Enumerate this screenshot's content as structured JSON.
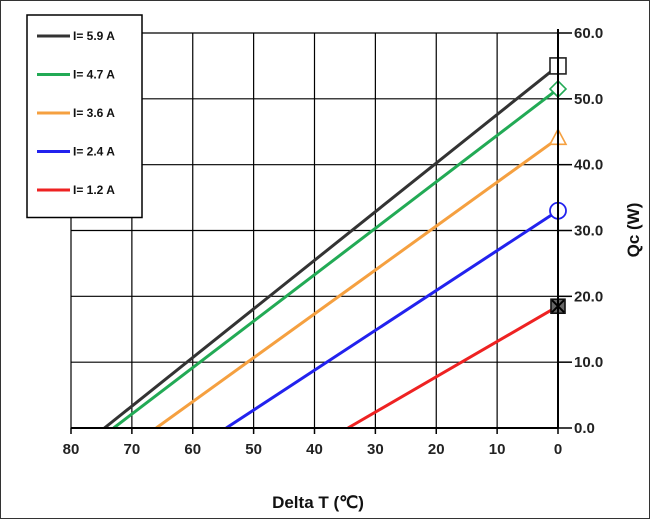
{
  "chart_data": {
    "type": "line",
    "xlabel": "Delta T (℃)",
    "ylabel": "Qc (W)",
    "xlim": [
      80,
      0
    ],
    "ylim": [
      0,
      60
    ],
    "x_ticks": [
      "80",
      "70",
      "60",
      "50",
      "40",
      "30",
      "20",
      "10",
      "0"
    ],
    "y_ticks": [
      "0.0",
      "10.0",
      "20.0",
      "30.0",
      "40.0",
      "50.0",
      "60.0"
    ],
    "grid": true,
    "legend_position": "top-left",
    "series": [
      {
        "name": "I= 5.9 A",
        "color": "#333333",
        "marker": "square",
        "points": [
          [
            74.5,
            0
          ],
          [
            0,
            55
          ]
        ]
      },
      {
        "name": "I= 4.7 A",
        "color": "#22aa55",
        "marker": "diamond",
        "points": [
          [
            73,
            0
          ],
          [
            0,
            51.5
          ]
        ]
      },
      {
        "name": "I= 3.6 A",
        "color": "#f5a040",
        "marker": "triangle",
        "points": [
          [
            66,
            0
          ],
          [
            0,
            44
          ]
        ]
      },
      {
        "name": "I= 2.4 A",
        "color": "#2222ee",
        "marker": "circle",
        "points": [
          [
            54.5,
            0
          ],
          [
            0,
            33
          ]
        ]
      },
      {
        "name": "I= 1.2 A",
        "color": "#ee2222",
        "marker": "x-square",
        "points": [
          [
            34.5,
            0
          ],
          [
            0,
            18.5
          ]
        ]
      }
    ]
  }
}
